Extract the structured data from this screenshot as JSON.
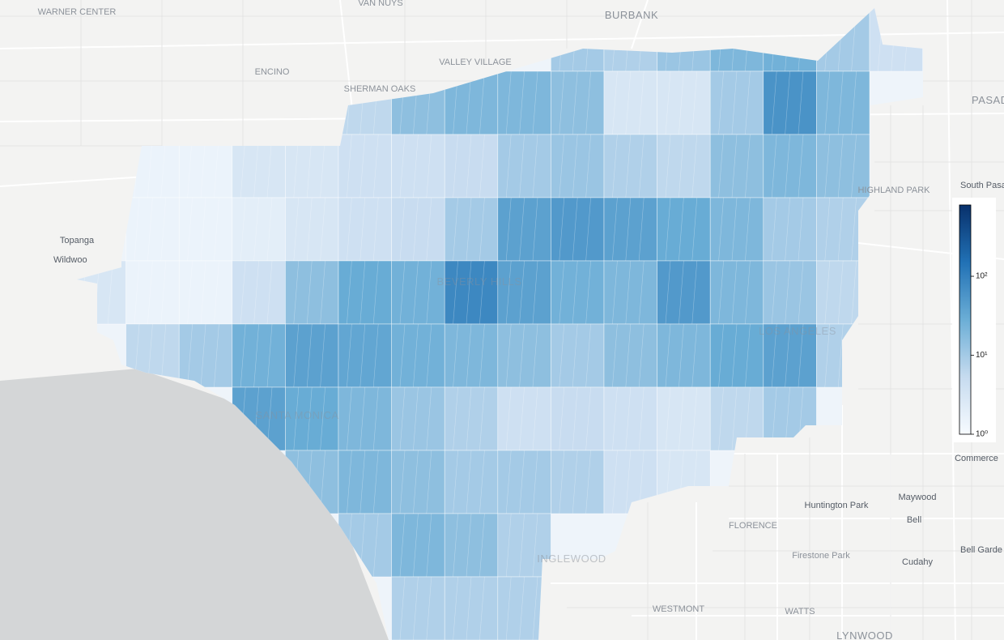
{
  "places": [
    "WARNER CENTER",
    "VAN NUYS",
    "BURBANK",
    "ENCINO",
    "VALLEY VILLAGE",
    "SHERMAN OAKS",
    "PASAD",
    "South Pasa",
    "HIGHLAND PARK",
    "Topanga",
    "Wildwoo",
    "Commerce",
    "Huntington Park",
    "Maywood",
    "Bell",
    "Bell Garde",
    "Cudahy",
    "Firestone Park",
    "FLORENCE",
    "WESTMONT",
    "WATTS",
    "LYNWOOD",
    "INGLEWOOD",
    "BEVERLY HILLS",
    "SANTA MONICA",
    "LOS ANGELES"
  ],
  "colorbar": {
    "scale": "log",
    "lim": [
      1,
      800
    ],
    "ticks": [
      {
        "value": 1,
        "label": "10⁰"
      },
      {
        "value": 10,
        "label": "10¹"
      },
      {
        "value": 100,
        "label": "10²"
      }
    ],
    "colors": [
      "#f7fbff",
      "#c6dbef",
      "#6baed6",
      "#2171b5",
      "#08306b"
    ]
  },
  "grid": {
    "values": [
      [
        null,
        null,
        null,
        null,
        null,
        null,
        null,
        null,
        null,
        10,
        8,
        12,
        20,
        25,
        10,
        4
      ],
      [
        null,
        null,
        null,
        null,
        null,
        6,
        15,
        20,
        20,
        15,
        3,
        3,
        10,
        60,
        20,
        null
      ],
      [
        null,
        1.5,
        1.5,
        3,
        3,
        4,
        4,
        5,
        10,
        12,
        8,
        6,
        15,
        20,
        15,
        null
      ],
      [
        null,
        1.5,
        1.5,
        2,
        3,
        4,
        5,
        10,
        40,
        50,
        40,
        30,
        20,
        10,
        8,
        null
      ],
      [
        3,
        1.5,
        1.5,
        4,
        15,
        30,
        25,
        80,
        40,
        25,
        20,
        50,
        20,
        12,
        6,
        null
      ],
      [
        null,
        6,
        10,
        25,
        40,
        35,
        25,
        20,
        15,
        10,
        15,
        20,
        30,
        40,
        8,
        null
      ],
      [
        null,
        null,
        null,
        40,
        30,
        20,
        12,
        8,
        4,
        5,
        4,
        3,
        6,
        10,
        null,
        null
      ],
      [
        null,
        null,
        null,
        null,
        15,
        20,
        15,
        10,
        10,
        8,
        4,
        3,
        null,
        null,
        null,
        null
      ],
      [
        null,
        null,
        null,
        null,
        null,
        10,
        20,
        15,
        8,
        null,
        null,
        null,
        null,
        null,
        null,
        null
      ],
      [
        null,
        null,
        null,
        null,
        null,
        null,
        8,
        8,
        8,
        null,
        null,
        null,
        null,
        null,
        null,
        null
      ]
    ]
  }
}
